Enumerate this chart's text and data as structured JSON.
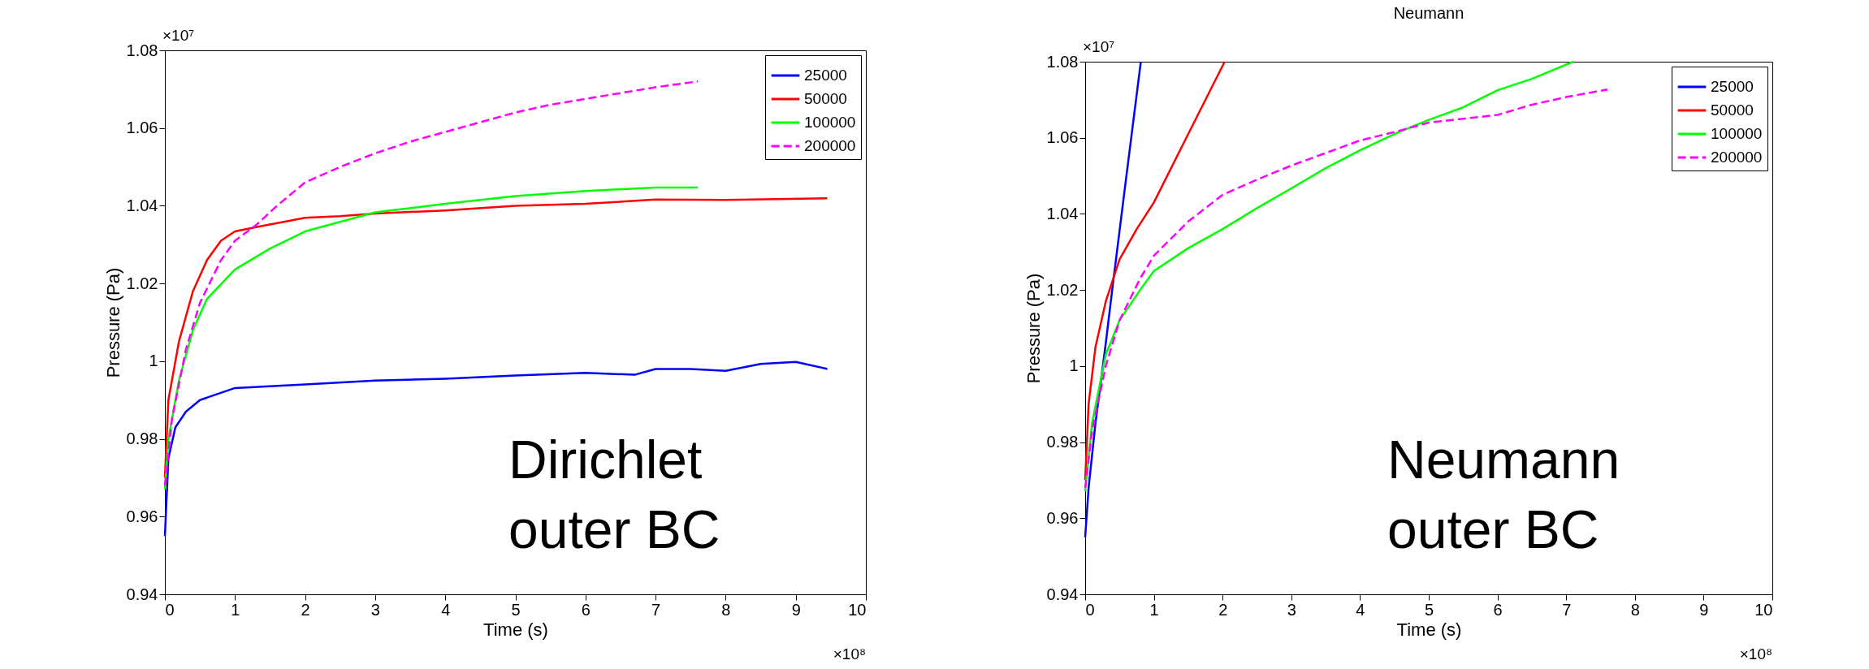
{
  "chart_data": [
    {
      "type": "line",
      "xlabel": "Time (s)",
      "ylabel": "Pressure (Pa)",
      "xlim": [
        0,
        10
      ],
      "xticks": [
        0,
        1,
        2,
        3,
        4,
        5,
        6,
        7,
        8,
        9,
        10
      ],
      "ylim": [
        0.94,
        1.08
      ],
      "yticks": [
        0.94,
        0.96,
        0.98,
        1,
        1.02,
        1.04,
        1.06,
        1.08
      ],
      "legend": "top right",
      "annotations": [
        "×10⁷",
        "×10⁸",
        "Dirichlet outer BC"
      ],
      "series": [
        {
          "name": "25000",
          "color": "#0000ff",
          "x": [
            0,
            0.05,
            0.15,
            0.3,
            0.5,
            1,
            2,
            3,
            4,
            5,
            6,
            6.7,
            7,
            7.5,
            8,
            8.5,
            9,
            9.45
          ],
          "values": [
            0.955,
            0.975,
            0.983,
            0.987,
            0.99,
            0.9931,
            0.994,
            0.995,
            0.9955,
            0.9963,
            0.997,
            0.9965,
            0.998,
            0.998,
            0.9975,
            0.9993,
            0.9998,
            0.998
          ]
        },
        {
          "name": "50000",
          "color": "#ff0000",
          "x": [
            0,
            0.05,
            0.2,
            0.4,
            0.6,
            0.8,
            1,
            1.3,
            2,
            2.5,
            3,
            4,
            5,
            6,
            7,
            8,
            9.45
          ],
          "values": [
            0.97,
            0.99,
            1.005,
            1.018,
            1.026,
            1.031,
            1.0334,
            1.0345,
            1.0369,
            1.0373,
            1.038,
            1.0388,
            1.04,
            1.0405,
            1.0416,
            1.0415,
            1.0419
          ]
        },
        {
          "name": "100000",
          "color": "#00ff00",
          "x": [
            0,
            0.05,
            0.2,
            0.4,
            0.6,
            1,
            1.5,
            2,
            3,
            4,
            5,
            6,
            7,
            7.6
          ],
          "values": [
            0.967,
            0.98,
            0.995,
            1.008,
            1.016,
            1.0236,
            1.029,
            1.0334,
            1.0383,
            1.0405,
            1.0425,
            1.0438,
            1.0447,
            1.0447
          ]
        },
        {
          "name": "200000",
          "color": "#ff00ff",
          "line_style": "dashed",
          "x": [
            0,
            0.1,
            0.3,
            0.5,
            0.8,
            1,
            1.3,
            1.6,
            2,
            2.5,
            3,
            3.5,
            4,
            4.5,
            5,
            5.5,
            6,
            6.5,
            7,
            7.6
          ],
          "values": [
            0.968,
            0.985,
            1.003,
            1.015,
            1.026,
            1.031,
            1.035,
            1.04,
            1.046,
            1.05,
            1.0535,
            1.0565,
            1.059,
            1.0615,
            1.064,
            1.066,
            1.0675,
            1.069,
            1.0705,
            1.072
          ]
        }
      ]
    },
    {
      "type": "line",
      "title": "Neumann",
      "xlabel": "Time (s)",
      "ylabel": "Pressure (Pa)",
      "xlim": [
        0,
        10
      ],
      "xticks": [
        0,
        1,
        2,
        3,
        4,
        5,
        6,
        7,
        8,
        9,
        10
      ],
      "ylim": [
        0.94,
        1.08
      ],
      "yticks": [
        0.94,
        0.96,
        0.98,
        1,
        1.02,
        1.04,
        1.06,
        1.08
      ],
      "legend": "top right",
      "annotations": [
        "×10⁷",
        "×10⁸",
        "Neumann outer BC"
      ],
      "series": [
        {
          "name": "25000",
          "color": "#0000ff",
          "x": [
            0,
            0.05,
            0.15,
            0.3,
            0.4,
            0.6,
            0.81
          ],
          "values": [
            0.955,
            0.968,
            0.985,
            1.006,
            1.021,
            1.05,
            1.08
          ]
        },
        {
          "name": "50000",
          "color": "#ff0000",
          "x": [
            0,
            0.05,
            0.15,
            0.3,
            0.5,
            0.75,
            1,
            1.5,
            2.03
          ],
          "values": [
            0.97,
            0.99,
            1.005,
            1.017,
            1.028,
            1.036,
            1.043,
            1.061,
            1.08
          ]
        },
        {
          "name": "100000",
          "color": "#00ff00",
          "x": [
            0,
            0.1,
            0.3,
            0.5,
            0.8,
            1,
            1.5,
            2,
            2.5,
            3,
            3.5,
            4,
            4.5,
            5,
            5.5,
            6,
            6.5,
            7.1
          ],
          "values": [
            0.967,
            0.985,
            1.003,
            1.012,
            1.02,
            1.025,
            1.031,
            1.036,
            1.0415,
            1.0467,
            1.052,
            1.0567,
            1.061,
            1.0647,
            1.068,
            1.0725,
            1.0755,
            1.08
          ]
        },
        {
          "name": "200000",
          "color": "#ff00ff",
          "line_style": "dashed",
          "x": [
            0,
            0.1,
            0.3,
            0.5,
            0.8,
            1,
            1.5,
            2,
            2.5,
            3,
            3.5,
            4,
            4.5,
            5,
            5.5,
            6,
            6.5,
            7,
            7.6
          ],
          "values": [
            0.968,
            0.983,
            1.0,
            1.012,
            1.023,
            1.029,
            1.038,
            1.045,
            1.049,
            1.0527,
            1.056,
            1.0593,
            1.0615,
            1.064,
            1.065,
            1.066,
            1.0687,
            1.0707,
            1.0727
          ]
        }
      ]
    }
  ]
}
